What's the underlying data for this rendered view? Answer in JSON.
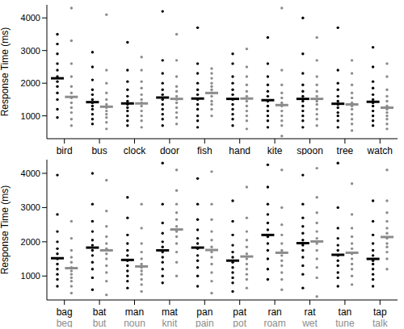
{
  "chart_data": [
    {
      "type": "scatter",
      "y_label": "Response Time (ms)",
      "ylim": [
        300,
        4400
      ],
      "yticks": [
        1000,
        2000,
        3000,
        4000
      ],
      "categories": [
        "bird",
        "bus",
        "clock",
        "door",
        "fish",
        "hand",
        "kite",
        "spoon",
        "tree",
        "watch"
      ],
      "series": [
        {
          "color": "#000000",
          "means": [
            2150,
            1420,
            1380,
            1560,
            1530,
            1520,
            1480,
            1520,
            1370,
            1430
          ],
          "values": [
            [
              950,
              1200,
              1500,
              1700,
              1900,
              2050,
              2200,
              2400,
              2600,
              2900,
              3200,
              3500
            ],
            [
              750,
              900,
              1050,
              1200,
              1300,
              1400,
              1500,
              1650,
              1800,
              2100,
              2500,
              2950
            ],
            [
              700,
              850,
              1000,
              1150,
              1250,
              1350,
              1450,
              1600,
              1800,
              2050,
              2400,
              3250
            ],
            [
              700,
              900,
              1050,
              1200,
              1350,
              1500,
              1650,
              1800,
              2000,
              2300,
              2700,
              4200
            ],
            [
              650,
              850,
              1000,
              1200,
              1350,
              1500,
              1650,
              1800,
              2000,
              2300,
              2600,
              3700
            ],
            [
              700,
              900,
              1050,
              1200,
              1350,
              1500,
              1650,
              1800,
              2000,
              2200,
              2600,
              2900
            ],
            [
              650,
              850,
              1000,
              1150,
              1300,
              1450,
              1600,
              1750,
              1950,
              2200,
              2600,
              3400
            ],
            [
              650,
              850,
              1000,
              1150,
              1300,
              1450,
              1600,
              1750,
              1950,
              2300,
              2900,
              4000
            ],
            [
              650,
              850,
              1000,
              1100,
              1250,
              1350,
              1450,
              1600,
              1800,
              2000,
              2400,
              3700
            ],
            [
              700,
              850,
              1000,
              1150,
              1300,
              1400,
              1500,
              1650,
              1850,
              2050,
              2500,
              3100
            ]
          ]
        },
        {
          "color": "#8c8c8c",
          "means": [
            1580,
            1280,
            1380,
            1520,
            1700,
            1530,
            1330,
            1520,
            1350,
            1250
          ],
          "values": [
            [
              700,
              900,
              1100,
              1250,
              1400,
              1550,
              1700,
              1900,
              2200,
              2600,
              3300,
              4300
            ],
            [
              600,
              800,
              950,
              1050,
              1150,
              1250,
              1350,
              1500,
              1700,
              2000,
              2400,
              4100
            ],
            [
              650,
              850,
              1000,
              1150,
              1300,
              1400,
              1500,
              1650,
              1850,
              2050,
              2400,
              2800
            ],
            [
              750,
              950,
              1100,
              1250,
              1400,
              1500,
              1600,
              1750,
              1900,
              2200,
              2700,
              3500
            ],
            [
              1000,
              1200,
              1350,
              1450,
              1600,
              1700,
              1800,
              1900,
              2000,
              2150,
              2300,
              2450
            ],
            [
              600,
              850,
              1000,
              1150,
              1300,
              1450,
              1600,
              1750,
              1950,
              2200,
              2500,
              3050
            ],
            [
              380,
              700,
              850,
              1000,
              1150,
              1300,
              1400,
              1550,
              1700,
              1950,
              2400,
              4300
            ],
            [
              700,
              900,
              1050,
              1200,
              1350,
              1450,
              1600,
              1750,
              1950,
              2200,
              2700,
              3400
            ],
            [
              550,
              750,
              900,
              1050,
              1200,
              1300,
              1400,
              1550,
              1700,
              1950,
              2300,
              2700
            ],
            [
              600,
              750,
              900,
              1000,
              1100,
              1200,
              1300,
              1450,
              1600,
              1800,
              2200,
              2600
            ]
          ]
        }
      ]
    },
    {
      "type": "scatter",
      "y_label": "Response Time (ms)",
      "ylim": [
        300,
        4400
      ],
      "yticks": [
        1000,
        2000,
        3000,
        4000
      ],
      "categories": [
        "bag",
        "bat",
        "man",
        "mat",
        "pan",
        "pat",
        "ran",
        "rat",
        "tan",
        "tap"
      ],
      "categories_2": [
        "beg",
        "but",
        "noun",
        "knit",
        "pain",
        "pot",
        "roam",
        "wet",
        "tune",
        "talk"
      ],
      "series": [
        {
          "color": "#000000",
          "means": [
            1520,
            1830,
            1470,
            1750,
            1830,
            1450,
            2200,
            1960,
            1620,
            1500
          ],
          "values": [
            [
              700,
              900,
              1050,
              1200,
              1350,
              1500,
              1650,
              1800,
              2000,
              2300,
              2800,
              3950
            ],
            [
              600,
              950,
              1200,
              1400,
              1600,
              1750,
              1900,
              2050,
              2300,
              2600,
              3100,
              4000
            ],
            [
              650,
              850,
              1000,
              1150,
              1300,
              1450,
              1600,
              1750,
              1950,
              2200,
              2700,
              3300
            ],
            [
              800,
              1000,
              1200,
              1400,
              1550,
              1700,
              1850,
              2000,
              2250,
              2550,
              3100,
              4300
            ],
            [
              700,
              1000,
              1250,
              1450,
              1600,
              1800,
              1950,
              2100,
              2350,
              2650,
              3100,
              3850
            ],
            [
              550,
              800,
              950,
              1100,
              1250,
              1400,
              1550,
              1700,
              1900,
              2200,
              2600,
              3200
            ],
            [
              900,
              1200,
              1500,
              1750,
              1950,
              2150,
              2350,
              2550,
              2800,
              3100,
              3600,
              4250
            ],
            [
              650,
              1050,
              1300,
              1550,
              1750,
              1900,
              2050,
              2250,
              2450,
              2700,
              3100,
              3950
            ],
            [
              700,
              950,
              1100,
              1300,
              1450,
              1600,
              1750,
              1900,
              2100,
              2400,
              3000,
              4300
            ],
            [
              700,
              900,
              1050,
              1200,
              1350,
              1450,
              1600,
              1750,
              1950,
              2200,
              2600,
              3200
            ]
          ]
        },
        {
          "color": "#8c8c8c",
          "means": [
            1230,
            1750,
            1280,
            2360,
            1760,
            1570,
            1680,
            2010,
            1680,
            2140
          ],
          "values": [
            [
              500,
              700,
              850,
              950,
              1050,
              1150,
              1250,
              1400,
              1550,
              1750,
              2100,
              2600
            ],
            [
              450,
              850,
              1100,
              1300,
              1500,
              1650,
              1800,
              1950,
              2150,
              2450,
              2900,
              3800
            ],
            [
              550,
              750,
              900,
              1050,
              1150,
              1250,
              1350,
              1500,
              1700,
              1950,
              2400,
              3100
            ],
            [
              1000,
              1400,
              1700,
              1950,
              2150,
              2300,
              2450,
              2650,
              2850,
              3100,
              3500,
              4100
            ],
            [
              500,
              850,
              1100,
              1350,
              1550,
              1700,
              1850,
              2050,
              2300,
              2650,
              3100,
              4050
            ],
            [
              650,
              900,
              1050,
              1200,
              1350,
              1500,
              1650,
              1850,
              2050,
              2300,
              2700,
              3600
            ],
            [
              600,
              900,
              1100,
              1300,
              1450,
              1600,
              1750,
              1950,
              2200,
              2500,
              3000,
              4100
            ],
            [
              400,
              950,
              1250,
              1500,
              1750,
              1950,
              2100,
              2300,
              2550,
              2850,
              3300,
              4150
            ],
            [
              750,
              1000,
              1200,
              1350,
              1500,
              1650,
              1800,
              1950,
              2150,
              2400,
              2800,
              3700
            ],
            [
              1200,
              1500,
              1700,
              1850,
              1950,
              2100,
              2250,
              2400,
              2600,
              2850,
              3200,
              4100
            ]
          ]
        }
      ]
    }
  ]
}
